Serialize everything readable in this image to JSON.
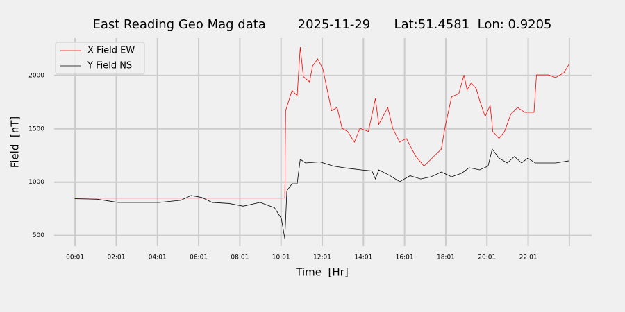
{
  "chart_data": {
    "type": "line",
    "title": "East Reading Geo Mag data        2025-11-29      Lat:51.4581  Lon: 0.9205",
    "x_label": "Time  [Hr]",
    "y_label": "Field  [nT]",
    "xlim": [
      -1,
      25.1
    ],
    "ylim": [
      400,
      2350
    ],
    "xticks": [
      {
        "value": 0.0167,
        "label": "00:01"
      },
      {
        "value": 2.0167,
        "label": "02:01"
      },
      {
        "value": 4.0167,
        "label": "04:01"
      },
      {
        "value": 6.0167,
        "label": "06:01"
      },
      {
        "value": 8.0167,
        "label": "08:01"
      },
      {
        "value": 10.0167,
        "label": "10:01"
      },
      {
        "value": 12.0167,
        "label": "12:01"
      },
      {
        "value": 14.0167,
        "label": "14:01"
      },
      {
        "value": 16.0167,
        "label": "16:01"
      },
      {
        "value": 18.0167,
        "label": "18:01"
      },
      {
        "value": 20.0167,
        "label": "20:01"
      },
      {
        "value": 22.0167,
        "label": "22:01"
      },
      {
        "value": 24.0167,
        "label": null
      }
    ],
    "yticks": [
      500,
      1000,
      1500,
      2000
    ],
    "grid": true,
    "legend": "upper-left",
    "series": [
      {
        "name": "X Field EW",
        "color": "#ff0000",
        "x": [
          0,
          10.2,
          10.24,
          10.55,
          10.8,
          10.95,
          11.1,
          11.4,
          11.55,
          11.8,
          12.05,
          12.3,
          12.47,
          12.74,
          12.98,
          13.25,
          13.58,
          13.85,
          14.26,
          14.6,
          14.76,
          15.2,
          15.44,
          15.78,
          16.1,
          16.55,
          16.96,
          17.3,
          17.8,
          17.97,
          18.3,
          18.65,
          18.9,
          19.05,
          19.25,
          19.5,
          19.66,
          19.93,
          20.17,
          20.3,
          20.6,
          20.87,
          21.17,
          21.5,
          21.85,
          22.3,
          22.42,
          23.0,
          23.35,
          23.75,
          24.0
        ],
        "values": [
          850,
          850,
          1670,
          1860,
          1810,
          2265,
          1990,
          1940,
          2090,
          2155,
          2060,
          1830,
          1670,
          1700,
          1505,
          1475,
          1375,
          1505,
          1475,
          1785,
          1540,
          1700,
          1505,
          1375,
          1410,
          1245,
          1150,
          1215,
          1310,
          1505,
          1800,
          1830,
          2005,
          1865,
          1930,
          1875,
          1765,
          1615,
          1720,
          1475,
          1410,
          1475,
          1635,
          1700,
          1655,
          1655,
          2005,
          2005,
          1980,
          2025,
          2105
        ]
      },
      {
        "name": "Y Field NS",
        "color": "#000000",
        "x": [
          0,
          1.1,
          2.1,
          3.1,
          4.1,
          5.15,
          5.65,
          6.16,
          6.67,
          7.5,
          8.18,
          9.0,
          9.7,
          10.03,
          10.2,
          10.3,
          10.55,
          10.8,
          10.95,
          11.2,
          11.9,
          12.57,
          13.25,
          13.9,
          14.43,
          14.6,
          14.76,
          15.27,
          15.78,
          16.28,
          16.8,
          17.3,
          17.8,
          18.3,
          18.8,
          19.15,
          19.66,
          20.07,
          20.27,
          20.6,
          21.0,
          21.35,
          21.7,
          22.0,
          22.36,
          23.0,
          23.35,
          24.0
        ],
        "values": [
          845,
          840,
          810,
          810,
          810,
          830,
          875,
          857,
          810,
          800,
          775,
          810,
          760,
          660,
          470,
          920,
          985,
          985,
          1215,
          1180,
          1190,
          1150,
          1130,
          1115,
          1105,
          1030,
          1115,
          1065,
          1005,
          1060,
          1030,
          1050,
          1095,
          1050,
          1085,
          1135,
          1115,
          1150,
          1310,
          1225,
          1180,
          1240,
          1180,
          1225,
          1180,
          1180,
          1180,
          1200
        ]
      }
    ]
  }
}
